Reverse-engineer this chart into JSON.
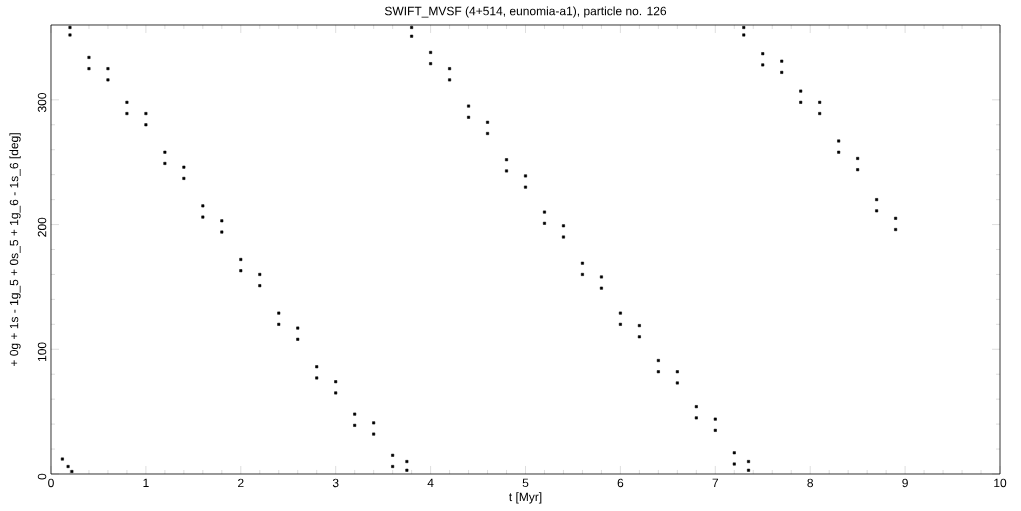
{
  "chart_data": {
    "type": "scatter",
    "title": "SWIFT_MVSF (4+514, eunomia-a1), particle no. 126",
    "xlabel": "t [Myr]",
    "ylabel": "+ 0g + 1s - 1g_5 + 0s_5 + 1g_6 - 1s_6 [deg]",
    "xlim": [
      0,
      10
    ],
    "ylim": [
      0,
      360
    ],
    "xticks": [
      0,
      1,
      2,
      3,
      4,
      5,
      6,
      7,
      8,
      9,
      10
    ],
    "yticks": [
      0,
      100,
      200,
      300
    ],
    "marker": "square",
    "grid": false,
    "series": [
      {
        "color": "#000000",
        "x": [
          0.12,
          0.18,
          0.22,
          0.2,
          0.2,
          0.4,
          0.4,
          0.6,
          0.6,
          0.8,
          0.8,
          1.0,
          1.0,
          1.2,
          1.2,
          1.4,
          1.4,
          1.6,
          1.6,
          1.8,
          1.8,
          2.0,
          2.0,
          2.2,
          2.2,
          2.4,
          2.4,
          2.6,
          2.6,
          2.8,
          2.8,
          3.0,
          3.0,
          3.2,
          3.2,
          3.4,
          3.4,
          3.6,
          3.6,
          3.75,
          3.75,
          3.8,
          3.8,
          4.0,
          4.0,
          4.2,
          4.2,
          4.4,
          4.4,
          4.6,
          4.6,
          4.8,
          4.8,
          5.0,
          5.0,
          5.2,
          5.2,
          5.4,
          5.4,
          5.6,
          5.6,
          5.8,
          5.8,
          6.0,
          6.0,
          6.2,
          6.2,
          6.4,
          6.4,
          6.6,
          6.6,
          6.8,
          6.8,
          7.0,
          7.0,
          7.2,
          7.2,
          7.35,
          7.35,
          7.3,
          7.3,
          7.5,
          7.5,
          7.7,
          7.7,
          7.9,
          7.9,
          8.1,
          8.1,
          8.3,
          8.3,
          8.5,
          8.5,
          8.7,
          8.7,
          8.9,
          8.9
        ],
        "values": [
          12,
          6,
          2,
          352,
          358,
          334,
          325,
          316,
          325,
          298,
          289,
          280,
          289,
          258,
          249,
          237,
          246,
          215,
          206,
          194,
          203,
          172,
          163,
          151,
          160,
          129,
          120,
          108,
          117,
          86,
          77,
          65,
          74,
          48,
          39,
          32,
          41,
          15,
          6,
          3,
          10,
          351,
          358,
          338,
          329,
          316,
          325,
          295,
          286,
          273,
          282,
          252,
          243,
          230,
          239,
          210,
          201,
          190,
          199,
          169,
          160,
          149,
          158,
          129,
          120,
          110,
          119,
          91,
          82,
          73,
          82,
          54,
          45,
          35,
          44,
          17,
          8,
          3,
          10,
          352,
          358,
          337,
          328,
          322,
          331,
          307,
          298,
          289,
          298,
          267,
          258,
          244,
          253,
          220,
          211,
          196,
          205
        ]
      }
    ]
  }
}
